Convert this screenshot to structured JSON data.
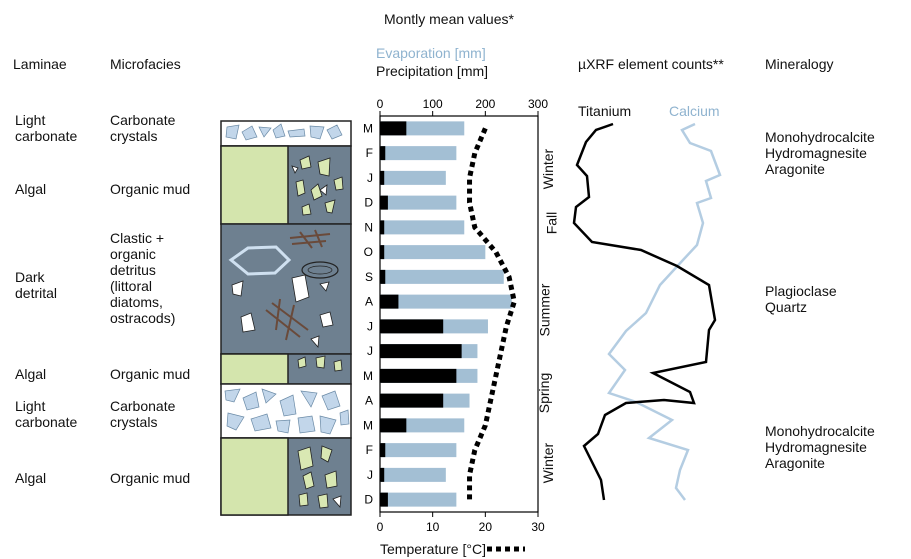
{
  "headers": {
    "title": "Montly mean values*",
    "laminae": "Laminae",
    "microfacies": "Microfacies",
    "evaporation": "Evaporation [mm]",
    "precipitation": "Precipitation [mm]",
    "xrf": "µXRF element counts**",
    "mineralogy": "Mineralogy",
    "temperature": "Temperature [°C]"
  },
  "laminae": [
    {
      "name": "Light\ncarbonate",
      "microfacies": "Carbonate\ncrystals"
    },
    {
      "name": "Algal",
      "microfacies": "Organic mud"
    },
    {
      "name": "Dark\ndetrital",
      "microfacies": "Clastic +\norganic\ndetritus\n(littoral\ndiatoms,\nostracods)"
    },
    {
      "name": "Algal",
      "microfacies": "Organic mud"
    },
    {
      "name": "Light\ncarbonate",
      "microfacies": "Carbonate\ncrystals"
    },
    {
      "name": "Algal",
      "microfacies": "Organic mud"
    }
  ],
  "seasons": [
    "Winter",
    "Fall",
    "Summer",
    "Spring",
    "Winter"
  ],
  "xrf_labels": {
    "titanium": "Titanium",
    "calcium": "Calcium"
  },
  "mineralogy": [
    "Monohydrocalcite\nHydromagnesite\nAragonite",
    "Plagioclase\nQuartz",
    "Monohydrocalcite\nHydromagnesite\nAragonite"
  ],
  "colors": {
    "evaporation": "#a3bfd4",
    "precipitation": "#000000",
    "temperature": "#000000",
    "titanium": "#000000",
    "calcium": "#b4cde2",
    "algal": "#d4e5ad",
    "dark_matrix": "#6e8090",
    "carbonate": "#c2d6ea"
  },
  "chart_data": {
    "type": "bar",
    "months": [
      "M",
      "F",
      "J",
      "D",
      "N",
      "O",
      "S",
      "A",
      "J",
      "J",
      "M",
      "A",
      "M",
      "F",
      "J",
      "D"
    ],
    "top_axis": {
      "label_1": "Evaporation [mm]",
      "label_2": "Precipitation [mm]",
      "ticks": [
        0,
        100,
        200,
        300
      ],
      "range": [
        0,
        300
      ]
    },
    "bottom_axis": {
      "label": "Temperature [°C]",
      "ticks": [
        0,
        10,
        20,
        30
      ],
      "range": [
        0,
        30
      ]
    },
    "series": [
      {
        "name": "Evaporation [mm]",
        "values": [
          160,
          145,
          125,
          145,
          160,
          200,
          235,
          250,
          205,
          185,
          185,
          170,
          160,
          145,
          125,
          145
        ]
      },
      {
        "name": "Precipitation [mm]",
        "values": [
          50,
          10,
          8,
          15,
          8,
          8,
          10,
          35,
          120,
          155,
          145,
          120,
          50,
          10,
          8,
          15
        ]
      },
      {
        "name": "Temperature [°C]",
        "values": [
          20,
          18,
          17,
          17,
          18,
          22,
          24.5,
          25.5,
          24,
          23,
          22,
          21,
          20,
          18,
          17,
          17
        ]
      }
    ]
  }
}
